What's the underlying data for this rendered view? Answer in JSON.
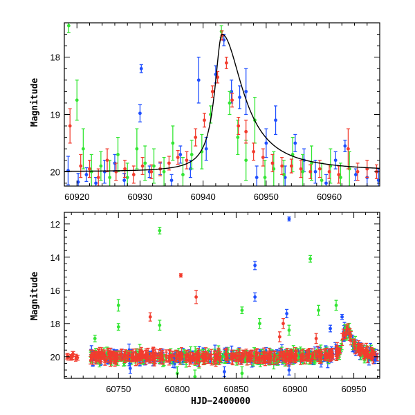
{
  "colors": {
    "blue": "#1f4fff",
    "green": "#33e633",
    "red": "#f23c2e",
    "model": "#000000"
  },
  "chart_data": [
    {
      "type": "scatter",
      "panel": "top",
      "title": "",
      "xlabel": "",
      "ylabel": "Magnitude",
      "xlim": [
        60918,
        60968
      ],
      "ylim": [
        20.25,
        17.4
      ],
      "y_inverted": true,
      "x_ticks": [
        60920,
        60930,
        60940,
        60950,
        60960
      ],
      "x_tick_labels": [
        "60920",
        "60930",
        "60940",
        "60950",
        "60960"
      ],
      "y_ticks": [
        18,
        19,
        20
      ],
      "y_tick_labels": [
        "18",
        "19",
        "20"
      ],
      "model_curve": {
        "baseline": 20.0,
        "peak_mag": 17.6,
        "peak_x": 60943.0,
        "rise_width": 1.4,
        "decay_width": 4.0
      },
      "series": [
        {
          "color_key": "blue",
          "points": [
            {
              "x": 60918.6,
              "y": 19.98,
              "e": 0.25
            },
            {
              "x": 60920.2,
              "y": 20.18,
              "e": 0.15
            },
            {
              "x": 60921.5,
              "y": 20.05,
              "e": 0.12
            },
            {
              "x": 60923.0,
              "y": 20.2,
              "e": 0.1
            },
            {
              "x": 60924.4,
              "y": 20.0,
              "e": 0.2
            },
            {
              "x": 60926.0,
              "y": 19.85,
              "e": 0.15
            },
            {
              "x": 60927.5,
              "y": 20.15,
              "e": 0.12
            },
            {
              "x": 60930.2,
              "y": 18.2,
              "e": 0.07
            },
            {
              "x": 60930.0,
              "y": 18.98,
              "e": 0.15
            },
            {
              "x": 60931.5,
              "y": 20.0,
              "e": 0.1
            },
            {
              "x": 60933.2,
              "y": 19.95,
              "e": 0.1
            },
            {
              "x": 60935.0,
              "y": 20.15,
              "e": 0.1
            },
            {
              "x": 60936.4,
              "y": 19.7,
              "e": 0.15
            },
            {
              "x": 60938.0,
              "y": 19.95,
              "e": 0.15
            },
            {
              "x": 60939.3,
              "y": 18.4,
              "e": 0.4
            },
            {
              "x": 60940.5,
              "y": 19.6,
              "e": 0.2
            },
            {
              "x": 60942.0,
              "y": 18.3,
              "e": 0.15
            },
            {
              "x": 60943.3,
              "y": 17.7,
              "e": 0.1
            },
            {
              "x": 60944.5,
              "y": 18.6,
              "e": 0.2
            },
            {
              "x": 60945.8,
              "y": 18.7,
              "e": 0.2
            },
            {
              "x": 60946.8,
              "y": 18.6,
              "e": 0.4
            },
            {
              "x": 60948.5,
              "y": 20.1,
              "e": 0.2
            },
            {
              "x": 60950.0,
              "y": 19.5,
              "e": 0.25
            },
            {
              "x": 60951.5,
              "y": 19.1,
              "e": 0.25
            },
            {
              "x": 60953.0,
              "y": 20.1,
              "e": 0.2
            },
            {
              "x": 60954.6,
              "y": 19.5,
              "e": 0.15
            },
            {
              "x": 60956.0,
              "y": 19.8,
              "e": 0.2
            },
            {
              "x": 60957.8,
              "y": 20.0,
              "e": 0.2
            },
            {
              "x": 60959.5,
              "y": 20.2,
              "e": 0.15
            },
            {
              "x": 60961.0,
              "y": 19.8,
              "e": 0.15
            },
            {
              "x": 60962.5,
              "y": 19.55,
              "e": 0.1
            },
            {
              "x": 60964.2,
              "y": 20.05,
              "e": 0.1
            },
            {
              "x": 60966.0,
              "y": 20.1,
              "e": 0.15
            },
            {
              "x": 60967.8,
              "y": 20.15,
              "e": 0.2
            }
          ]
        },
        {
          "color_key": "green",
          "points": [
            {
              "x": 60918.7,
              "y": 17.45,
              "e": 0.12
            },
            {
              "x": 60920.0,
              "y": 18.75,
              "e": 0.35
            },
            {
              "x": 60921.0,
              "y": 19.6,
              "e": 0.35
            },
            {
              "x": 60922.3,
              "y": 20.0,
              "e": 0.3
            },
            {
              "x": 60923.8,
              "y": 19.9,
              "e": 0.25
            },
            {
              "x": 60925.2,
              "y": 20.1,
              "e": 0.3
            },
            {
              "x": 60926.5,
              "y": 19.7,
              "e": 0.3
            },
            {
              "x": 60928.0,
              "y": 20.1,
              "e": 0.25
            },
            {
              "x": 60929.5,
              "y": 19.6,
              "e": 0.35
            },
            {
              "x": 60930.8,
              "y": 19.85,
              "e": 0.3
            },
            {
              "x": 60932.2,
              "y": 19.9,
              "e": 0.3
            },
            {
              "x": 60933.8,
              "y": 20.0,
              "e": 0.25
            },
            {
              "x": 60935.2,
              "y": 19.5,
              "e": 0.3
            },
            {
              "x": 60936.8,
              "y": 20.05,
              "e": 0.3
            },
            {
              "x": 60938.2,
              "y": 19.7,
              "e": 0.25
            },
            {
              "x": 60939.8,
              "y": 19.65,
              "e": 0.3
            },
            {
              "x": 60941.2,
              "y": 19.0,
              "e": 0.15
            },
            {
              "x": 60942.9,
              "y": 17.55,
              "e": 0.1
            },
            {
              "x": 60944.2,
              "y": 18.8,
              "e": 0.2
            },
            {
              "x": 60945.5,
              "y": 19.4,
              "e": 0.3
            },
            {
              "x": 60946.8,
              "y": 19.8,
              "e": 0.35
            },
            {
              "x": 60948.2,
              "y": 19.1,
              "e": 0.4
            },
            {
              "x": 60949.8,
              "y": 20.1,
              "e": 0.3
            },
            {
              "x": 60951.2,
              "y": 19.95,
              "e": 0.3
            },
            {
              "x": 60952.8,
              "y": 20.05,
              "e": 0.25
            },
            {
              "x": 60954.2,
              "y": 19.7,
              "e": 0.3
            },
            {
              "x": 60955.8,
              "y": 20.0,
              "e": 0.3
            },
            {
              "x": 60957.2,
              "y": 19.85,
              "e": 0.3
            },
            {
              "x": 60958.8,
              "y": 20.15,
              "e": 0.3
            },
            {
              "x": 60960.2,
              "y": 19.9,
              "e": 0.3
            },
            {
              "x": 60961.8,
              "y": 20.1,
              "e": 0.25
            },
            {
              "x": 60963.2,
              "y": 19.95,
              "e": 0.3
            }
          ]
        },
        {
          "color_key": "red",
          "points": [
            {
              "x": 60918.9,
              "y": 19.2,
              "e": 0.3
            },
            {
              "x": 60920.6,
              "y": 19.9,
              "e": 0.2
            },
            {
              "x": 60922.0,
              "y": 19.95,
              "e": 0.15
            },
            {
              "x": 60923.4,
              "y": 20.1,
              "e": 0.15
            },
            {
              "x": 60924.8,
              "y": 19.8,
              "e": 0.2
            },
            {
              "x": 60926.2,
              "y": 20.0,
              "e": 0.15
            },
            {
              "x": 60927.6,
              "y": 19.95,
              "e": 0.15
            },
            {
              "x": 60929.0,
              "y": 20.05,
              "e": 0.15
            },
            {
              "x": 60930.4,
              "y": 19.9,
              "e": 0.15
            },
            {
              "x": 60931.8,
              "y": 20.0,
              "e": 0.12
            },
            {
              "x": 60933.2,
              "y": 19.95,
              "e": 0.12
            },
            {
              "x": 60934.6,
              "y": 19.85,
              "e": 0.12
            },
            {
              "x": 60936.0,
              "y": 19.75,
              "e": 0.12
            },
            {
              "x": 60937.4,
              "y": 19.8,
              "e": 0.15
            },
            {
              "x": 60938.8,
              "y": 19.4,
              "e": 0.15
            },
            {
              "x": 60940.2,
              "y": 19.1,
              "e": 0.12
            },
            {
              "x": 60941.5,
              "y": 18.6,
              "e": 0.1
            },
            {
              "x": 60942.3,
              "y": 18.35,
              "e": 0.1
            },
            {
              "x": 60943.0,
              "y": 17.62,
              "e": 0.08
            },
            {
              "x": 60943.7,
              "y": 18.1,
              "e": 0.1
            },
            {
              "x": 60944.6,
              "y": 18.75,
              "e": 0.12
            },
            {
              "x": 60945.6,
              "y": 19.2,
              "e": 0.15
            },
            {
              "x": 60946.8,
              "y": 19.3,
              "e": 0.2
            },
            {
              "x": 60948.0,
              "y": 19.65,
              "e": 0.15
            },
            {
              "x": 60949.5,
              "y": 19.75,
              "e": 0.15
            },
            {
              "x": 60951.0,
              "y": 19.85,
              "e": 0.15
            },
            {
              "x": 60952.5,
              "y": 19.9,
              "e": 0.15
            },
            {
              "x": 60954.0,
              "y": 19.9,
              "e": 0.12
            },
            {
              "x": 60955.5,
              "y": 19.95,
              "e": 0.15
            },
            {
              "x": 60957.0,
              "y": 20.0,
              "e": 0.12
            },
            {
              "x": 60958.5,
              "y": 19.95,
              "e": 0.15
            },
            {
              "x": 60960.0,
              "y": 20.0,
              "e": 0.12
            },
            {
              "x": 60961.5,
              "y": 20.05,
              "e": 0.15
            },
            {
              "x": 60963.0,
              "y": 19.6,
              "e": 0.35
            },
            {
              "x": 60964.5,
              "y": 20.0,
              "e": 0.15
            },
            {
              "x": 60966.0,
              "y": 19.95,
              "e": 0.15
            },
            {
              "x": 60967.5,
              "y": 20.0,
              "e": 0.12
            }
          ]
        }
      ]
    },
    {
      "type": "scatter",
      "panel": "bottom",
      "title": "",
      "xlabel": "HJD−2400000",
      "ylabel": "Magnitude",
      "xlim": [
        60704,
        60972
      ],
      "ylim": [
        21.3,
        11.3
      ],
      "y_inverted": true,
      "x_ticks": [
        60750,
        60800,
        60850,
        60900,
        60950
      ],
      "x_tick_labels": [
        "60750",
        "60800",
        "60850",
        "60900",
        "60950"
      ],
      "y_ticks": [
        12,
        14,
        16,
        18,
        20
      ],
      "y_tick_labels": [
        "12",
        "14",
        "16",
        "18",
        "20"
      ],
      "baseline_model": {
        "baseline": 20.0,
        "peak_mag": 18.4,
        "peak_x": 60943.0,
        "rise_width": 3.0,
        "decay_width": 7.0
      },
      "dense_observing_window": [
        60726,
        60970
      ],
      "series": [
        {
          "color_key": "blue",
          "highlights": [
            {
              "x": 60895,
              "y": 11.7,
              "e": 0.12
            },
            {
              "x": 60866,
              "y": 14.5,
              "e": 0.25
            },
            {
              "x": 60866,
              "y": 16.4,
              "e": 0.25
            },
            {
              "x": 60893,
              "y": 17.4,
              "e": 0.25
            },
            {
              "x": 60940,
              "y": 17.6,
              "e": 0.15
            },
            {
              "x": 60930,
              "y": 18.3,
              "e": 0.2
            },
            {
              "x": 60895,
              "y": 20.8,
              "e": 0.3
            },
            {
              "x": 60840,
              "y": 20.9,
              "e": 0.3
            },
            {
              "x": 60760,
              "y": 20.7,
              "e": 0.3
            },
            {
              "x": 60968,
              "y": 20.2,
              "e": 0.2
            }
          ]
        },
        {
          "color_key": "green",
          "highlights": [
            {
              "x": 60785,
              "y": 12.4,
              "e": 0.2
            },
            {
              "x": 60913,
              "y": 14.1,
              "e": 0.2
            },
            {
              "x": 60750,
              "y": 16.9,
              "e": 0.35
            },
            {
              "x": 60855,
              "y": 17.2,
              "e": 0.2
            },
            {
              "x": 60920,
              "y": 17.2,
              "e": 0.3
            },
            {
              "x": 60935,
              "y": 16.9,
              "e": 0.3
            },
            {
              "x": 60750,
              "y": 18.2,
              "e": 0.2
            },
            {
              "x": 60785,
              "y": 18.1,
              "e": 0.3
            },
            {
              "x": 60870,
              "y": 18.0,
              "e": 0.3
            },
            {
              "x": 60895,
              "y": 18.4,
              "e": 0.3
            },
            {
              "x": 60730,
              "y": 18.9,
              "e": 0.2
            },
            {
              "x": 60800,
              "y": 21.0,
              "e": 0.4
            },
            {
              "x": 60815,
              "y": 21.2,
              "e": 0.4
            },
            {
              "x": 60855,
              "y": 21.0,
              "e": 0.4
            }
          ]
        },
        {
          "color_key": "red",
          "highlights": [
            {
              "x": 60803,
              "y": 15.1,
              "e": 0.1
            },
            {
              "x": 60816,
              "y": 16.4,
              "e": 0.4
            },
            {
              "x": 60777,
              "y": 17.6,
              "e": 0.25
            },
            {
              "x": 60890,
              "y": 18.0,
              "e": 0.3
            },
            {
              "x": 60887,
              "y": 18.8,
              "e": 0.3
            },
            {
              "x": 60943,
              "y": 18.7,
              "e": 0.2
            },
            {
              "x": 60918,
              "y": 18.9,
              "e": 0.3
            },
            {
              "x": 60714,
              "y": 20.0,
              "e": 0.15
            }
          ]
        }
      ]
    }
  ]
}
